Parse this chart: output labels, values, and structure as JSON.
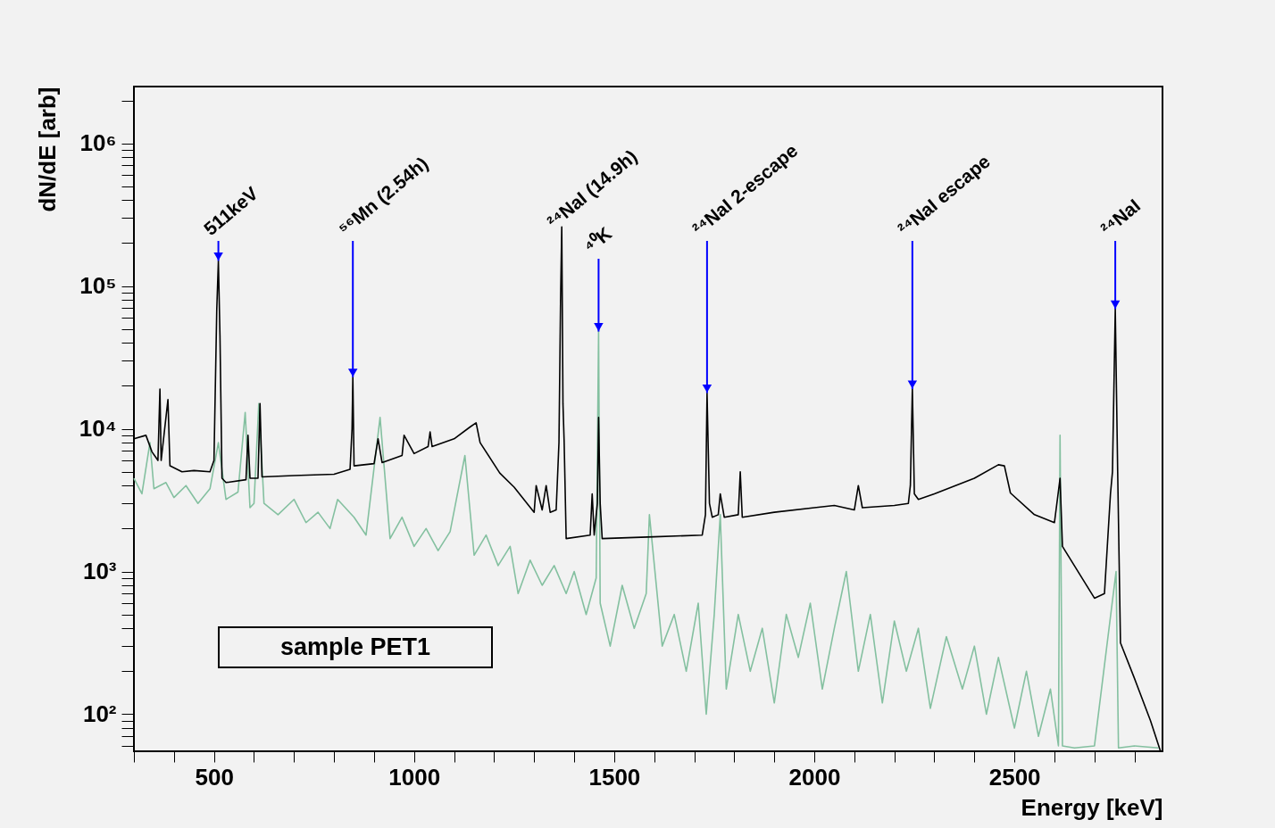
{
  "chart_data": {
    "type": "line",
    "xlabel": "Energy [keV]",
    "ylabel": "dN/dE [arb]",
    "log": true,
    "xlim": [
      300,
      2870
    ],
    "xticks": [
      {
        "value": 300,
        "label": null
      },
      {
        "value": 400,
        "label": null
      },
      500,
      {
        "value": 600,
        "label": null
      },
      {
        "value": 700,
        "label": null
      },
      {
        "value": 800,
        "label": null
      },
      {
        "value": 900,
        "label": null
      },
      1000,
      {
        "value": 1100,
        "label": null
      },
      {
        "value": 1200,
        "label": null
      },
      {
        "value": 1300,
        "label": null
      },
      {
        "value": 1400,
        "label": null
      },
      1500,
      {
        "value": 1600,
        "label": null
      },
      {
        "value": 1700,
        "label": null
      },
      {
        "value": 1800,
        "label": null
      },
      {
        "value": 1900,
        "label": null
      },
      2000,
      {
        "value": 2100,
        "label": null
      },
      {
        "value": 2200,
        "label": null
      },
      {
        "value": 2300,
        "label": null
      },
      {
        "value": 2400,
        "label": null
      },
      2500,
      {
        "value": 2600,
        "label": null
      },
      {
        "value": 2700,
        "label": null
      },
      {
        "value": 2800,
        "label": null
      }
    ],
    "ylim": [
      55,
      2500000
    ],
    "yticks": [
      {
        "value": 60,
        "label": null
      },
      {
        "value": 70,
        "label": null
      },
      {
        "value": 80,
        "label": null
      },
      {
        "value": 90,
        "label": null
      },
      {
        "value": 100,
        "label": "10²"
      },
      {
        "value": 200,
        "label": null
      },
      {
        "value": 300,
        "label": null
      },
      {
        "value": 400,
        "label": null
      },
      {
        "value": 500,
        "label": null
      },
      {
        "value": 600,
        "label": null
      },
      {
        "value": 700,
        "label": null
      },
      {
        "value": 800,
        "label": null
      },
      {
        "value": 900,
        "label": null
      },
      {
        "value": 1000,
        "label": "10³"
      },
      {
        "value": 2000,
        "label": null
      },
      {
        "value": 3000,
        "label": null
      },
      {
        "value": 4000,
        "label": null
      },
      {
        "value": 5000,
        "label": null
      },
      {
        "value": 6000,
        "label": null
      },
      {
        "value": 7000,
        "label": null
      },
      {
        "value": 8000,
        "label": null
      },
      {
        "value": 9000,
        "label": null
      },
      {
        "value": 10000,
        "label": "10⁴"
      },
      {
        "value": 20000,
        "label": null
      },
      {
        "value": 30000,
        "label": null
      },
      {
        "value": 40000,
        "label": null
      },
      {
        "value": 50000,
        "label": null
      },
      {
        "value": 60000,
        "label": null
      },
      {
        "value": 70000,
        "label": null
      },
      {
        "value": 80000,
        "label": null
      },
      {
        "value": 90000,
        "label": null
      },
      {
        "value": 100000,
        "label": "10⁵"
      },
      {
        "value": 200000,
        "label": null
      },
      {
        "value": 300000,
        "label": null
      },
      {
        "value": 400000,
        "label": null
      },
      {
        "value": 500000,
        "label": null
      },
      {
        "value": 600000,
        "label": null
      },
      {
        "value": 700000,
        "label": null
      },
      {
        "value": 800000,
        "label": null
      },
      {
        "value": 900000,
        "label": null
      },
      {
        "value": 1000000,
        "label": "10⁶"
      },
      {
        "value": 2000000,
        "label": null
      }
    ],
    "series": [
      {
        "color": "#84c0a0",
        "x": [
          300,
          320,
          340,
          350,
          380,
          400,
          430,
          460,
          490,
          511,
          530,
          560,
          578,
          590,
          600,
          612,
          625,
          660,
          700,
          730,
          760,
          790,
          809,
          850,
          880,
          915,
          940,
          970,
          1000,
          1030,
          1060,
          1090,
          1127,
          1150,
          1180,
          1210,
          1240,
          1260,
          1290,
          1320,
          1350,
          1380,
          1400,
          1430,
          1455,
          1461,
          1465,
          1490,
          1520,
          1550,
          1580,
          1588,
          1620,
          1650,
          1680,
          1710,
          1730,
          1750,
          1765,
          1780,
          1810,
          1840,
          1870,
          1900,
          1930,
          1960,
          1990,
          2020,
          2050,
          2080,
          2110,
          2140,
          2170,
          2200,
          2230,
          2260,
          2290,
          2330,
          2370,
          2400,
          2430,
          2460,
          2500,
          2530,
          2560,
          2590,
          2610,
          2614,
          2620,
          2650,
          2700,
          2754,
          2760,
          2800,
          2860
        ],
        "values": [
          4500,
          3500,
          8000,
          3800,
          4200,
          3300,
          4000,
          3000,
          3800,
          8000,
          3200,
          3600,
          13000,
          2800,
          3000,
          15000,
          3000,
          2500,
          3200,
          2200,
          2600,
          2000,
          3200,
          2400,
          1800,
          12000,
          1700,
          2400,
          1500,
          2000,
          1400,
          1900,
          6500,
          1300,
          1800,
          1100,
          1500,
          700,
          1200,
          800,
          1100,
          700,
          1000,
          500,
          900,
          48000,
          600,
          300,
          800,
          400,
          700,
          2500,
          300,
          500,
          200,
          600,
          100,
          500,
          2500,
          150,
          500,
          200,
          400,
          120,
          500,
          250,
          600,
          150,
          400,
          1000,
          200,
          500,
          120,
          450,
          200,
          400,
          110,
          350,
          150,
          300,
          100,
          250,
          80,
          200,
          70,
          150,
          60,
          9000,
          60,
          58,
          60,
          1000,
          58,
          60,
          58
        ]
      },
      {
        "color": "#000000",
        "x": [
          300,
          330,
          345,
          360,
          365,
          368,
          385,
          390,
          420,
          450,
          490,
          500,
          507,
          511,
          515,
          520,
          530,
          580,
          585,
          590,
          610,
          615,
          620,
          700,
          800,
          840,
          845,
          847,
          850,
          900,
          910,
          920,
          970,
          975,
          1000,
          1035,
          1040,
          1045,
          1100,
          1140,
          1155,
          1165,
          1214,
          1250,
          1300,
          1305,
          1320,
          1330,
          1340,
          1355,
          1362,
          1366,
          1369,
          1372,
          1375,
          1380,
          1440,
          1445,
          1450,
          1458,
          1461,
          1465,
          1470,
          1600,
          1720,
          1728,
          1732,
          1738,
          1745,
          1760,
          1765,
          1775,
          1810,
          1815,
          1820,
          1900,
          2000,
          2050,
          2100,
          2110,
          2120,
          2200,
          2235,
          2240,
          2245,
          2250,
          2260,
          2300,
          2400,
          2460,
          2475,
          2490,
          2550,
          2600,
          2614,
          2620,
          2700,
          2725,
          2740,
          2745,
          2752,
          2758,
          2765,
          2800,
          2840,
          2865
        ],
        "values": [
          8500,
          9000,
          6900,
          6000,
          19000,
          6000,
          16000,
          5500,
          5000,
          5100,
          5000,
          6000,
          69000,
          150000,
          45000,
          4500,
          4200,
          4400,
          9000,
          4500,
          4500,
          15000,
          4600,
          4700,
          4800,
          5200,
          10000,
          23000,
          5500,
          5700,
          8500,
          5800,
          6500,
          9000,
          6700,
          7500,
          9500,
          7500,
          8500,
          10300,
          11000,
          8000,
          4900,
          3900,
          2600,
          4000,
          2700,
          4000,
          2600,
          2700,
          8000,
          80000,
          260000,
          15000,
          8000,
          1700,
          1800,
          3500,
          1800,
          3000,
          12000,
          3000,
          1700,
          1750,
          1800,
          2500,
          17800,
          3000,
          2400,
          2500,
          3500,
          2400,
          2500,
          5000,
          2400,
          2600,
          2800,
          2900,
          2700,
          4000,
          2800,
          2900,
          3000,
          4000,
          19000,
          3500,
          3200,
          3500,
          4500,
          5600,
          5500,
          3550,
          2500,
          2200,
          4500,
          1500,
          650,
          700,
          3500,
          5000,
          69000,
          5000,
          316,
          178,
          90,
          55
        ]
      }
    ],
    "annotations": [
      {
        "text": "511keV",
        "x": 511,
        "y": 150000
      },
      {
        "text": "⁵⁶Mn (2.54h)",
        "x": 847,
        "y": 23000
      },
      {
        "text": "²⁴NaI (14.9h)",
        "x": 1369,
        "y": 260000
      },
      {
        "text": "⁴⁰K",
        "x": 1461,
        "y": 48000
      },
      {
        "text": "²⁴NaI 2-escape",
        "x": 1732,
        "y": 17800
      },
      {
        "text": "²⁴NaI escape",
        "x": 2245,
        "y": 19000
      },
      {
        "text": "²⁴NaI",
        "x": 2752,
        "y": 69000
      },
      "sample PET1"
    ]
  }
}
